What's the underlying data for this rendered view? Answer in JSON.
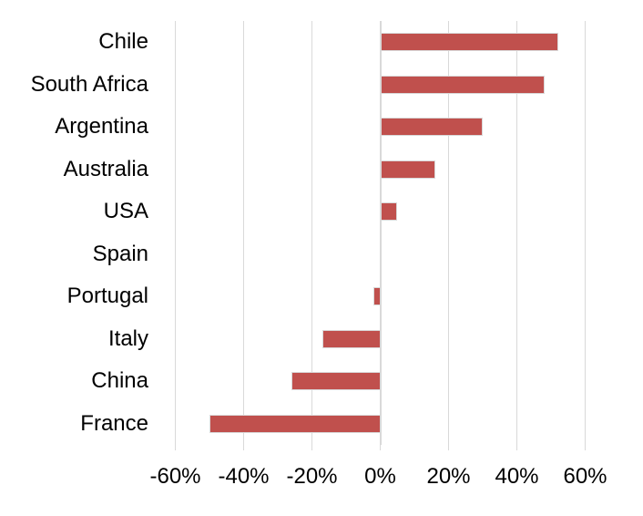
{
  "chart_data": {
    "type": "bar",
    "orientation": "horizontal",
    "title": "",
    "categories": [
      "Chile",
      "South Africa",
      "Argentina",
      "Australia",
      "USA",
      "Spain",
      "Portugal",
      "Italy",
      "China",
      "France"
    ],
    "values": [
      52,
      48,
      30,
      16,
      5,
      0,
      -2,
      -17,
      -26,
      -50
    ],
    "value_unit": "percent",
    "x_ticks": [
      {
        "value": -60,
        "label": "-60%"
      },
      {
        "value": -40,
        "label": "-40%"
      },
      {
        "value": -20,
        "label": "-20%"
      },
      {
        "value": 0,
        "label": "0%"
      },
      {
        "value": 20,
        "label": "20%"
      },
      {
        "value": 40,
        "label": "40%"
      },
      {
        "value": 60,
        "label": "60%"
      }
    ],
    "x_axis": {
      "min": -60,
      "max": 60,
      "step": 20,
      "format": "percent"
    },
    "grid": "vertical-gridlines-on",
    "legend": "none",
    "colors": {
      "bar_fill": "#C0504D",
      "bar_border": "#D9D9D9",
      "gridline": "#D9D9D9",
      "zero_axis_line": "#D9D9D9",
      "tick_mark": "#D9D9D9",
      "text": "#000000",
      "background": "#FFFFFF"
    }
  }
}
